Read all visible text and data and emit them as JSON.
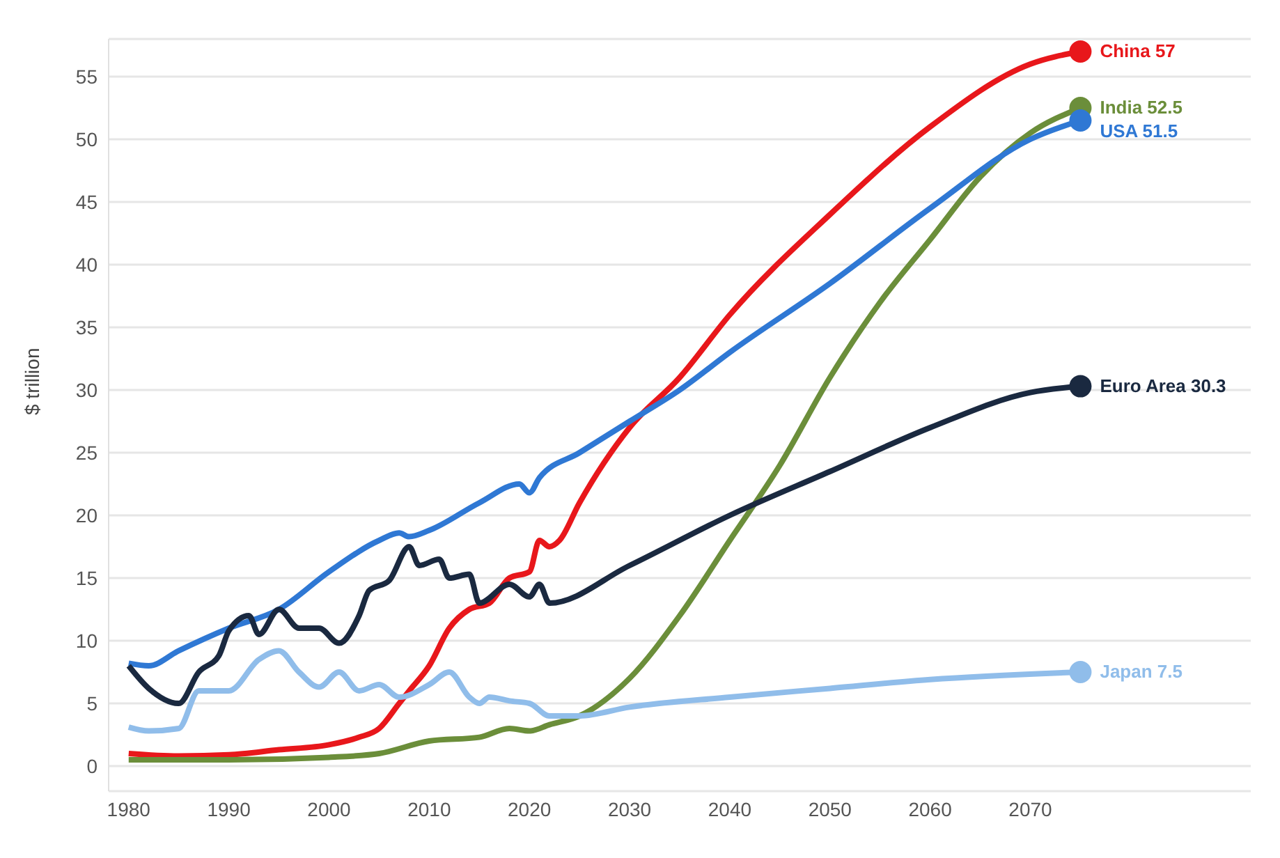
{
  "chart_data": {
    "type": "line",
    "ylabel": "$ trillion",
    "xlim": [
      1978,
      2092
    ],
    "xticks": [
      1980,
      1990,
      2000,
      2010,
      2020,
      2030,
      2040,
      2050,
      2060,
      2070
    ],
    "ylim": [
      -2,
      58
    ],
    "yticks": [
      0,
      5,
      10,
      15,
      20,
      25,
      30,
      35,
      40,
      45,
      50,
      55
    ],
    "grid": "y",
    "marker": "none",
    "line_style": "solid",
    "series": [
      {
        "color": "#e8171b",
        "x": [
          1980,
          1985,
          1990,
          1995,
          2000,
          2003,
          2005,
          2007,
          2008,
          2010,
          2012,
          2014,
          2016,
          2018,
          2020,
          2021,
          2022,
          2023,
          2025,
          2030,
          2035,
          2040,
          2050,
          2060,
          2070,
          2075
        ],
        "values": [
          1.0,
          0.8,
          0.9,
          1.3,
          1.7,
          2.3,
          3,
          5,
          6,
          8,
          11,
          12.5,
          13,
          15,
          15.5,
          18,
          17.5,
          18,
          21,
          27,
          31,
          36,
          44,
          51,
          56,
          57
        ]
      },
      {
        "color": "#6b8e3a",
        "x": [
          1980,
          1990,
          2000,
          2005,
          2010,
          2015,
          2018,
          2020,
          2022,
          2025,
          2030,
          2035,
          2040,
          2045,
          2050,
          2055,
          2060,
          2065,
          2070,
          2075
        ],
        "values": [
          0.5,
          0.5,
          0.7,
          1.0,
          2.0,
          2.3,
          3,
          2.8,
          3.3,
          4,
          7,
          12,
          18,
          24,
          31,
          37,
          42,
          47,
          50.5,
          52.5
        ]
      },
      {
        "color": "#2f78d4",
        "x": [
          1980,
          1982,
          1985,
          1990,
          1995,
          2000,
          2005,
          2007,
          2008,
          2010,
          2015,
          2019,
          2020,
          2021,
          2025,
          2030,
          2035,
          2040,
          2050,
          2060,
          2070,
          2075
        ],
        "values": [
          8.2,
          8.0,
          9.2,
          11.0,
          12.5,
          15.5,
          18,
          18.6,
          18.3,
          18.8,
          21,
          22.5,
          21.8,
          23,
          25,
          27.5,
          30,
          33,
          38.5,
          44.5,
          50,
          51.5
        ]
      },
      {
        "color": "#1a2940",
        "x": [
          1980,
          1982,
          1985,
          1987,
          1989,
          1990,
          1992,
          1993,
          1995,
          1997,
          1999,
          2001,
          2003,
          2004,
          2006,
          2008,
          2009,
          2011,
          2012,
          2014,
          2015,
          2018,
          2020,
          2021,
          2022,
          2030,
          2040,
          2050,
          2060,
          2070,
          2075
        ],
        "values": [
          8.0,
          6.2,
          5.0,
          7.5,
          8.8,
          10.8,
          12,
          10.5,
          12.5,
          11,
          11,
          9.8,
          12,
          14,
          14.8,
          17.5,
          16,
          16.5,
          15,
          15.3,
          13,
          14.5,
          13.5,
          14.5,
          13,
          16,
          20,
          23.5,
          27,
          29.8,
          30.3
        ]
      },
      {
        "color": "#90bdea",
        "x": [
          1980,
          1982,
          1985,
          1987,
          1990,
          1993,
          1995,
          1997,
          1999,
          2001,
          2003,
          2005,
          2007,
          2010,
          2012,
          2014,
          2015,
          2016,
          2018,
          2020,
          2022,
          2025,
          2030,
          2040,
          2050,
          2060,
          2075
        ],
        "values": [
          3.1,
          2.8,
          3.0,
          6,
          6,
          8.5,
          9.2,
          7.5,
          6.3,
          7.5,
          6,
          6.5,
          5.5,
          6.5,
          7.5,
          5.5,
          5,
          5.5,
          5.2,
          5,
          4,
          4,
          4.7,
          5.5,
          6.2,
          6.9,
          7.5
        ]
      }
    ],
    "annotations": [
      "China 57",
      "India 52.5",
      "USA 51.5",
      "Euro Area 30.3",
      "Japan 7.5"
    ]
  }
}
